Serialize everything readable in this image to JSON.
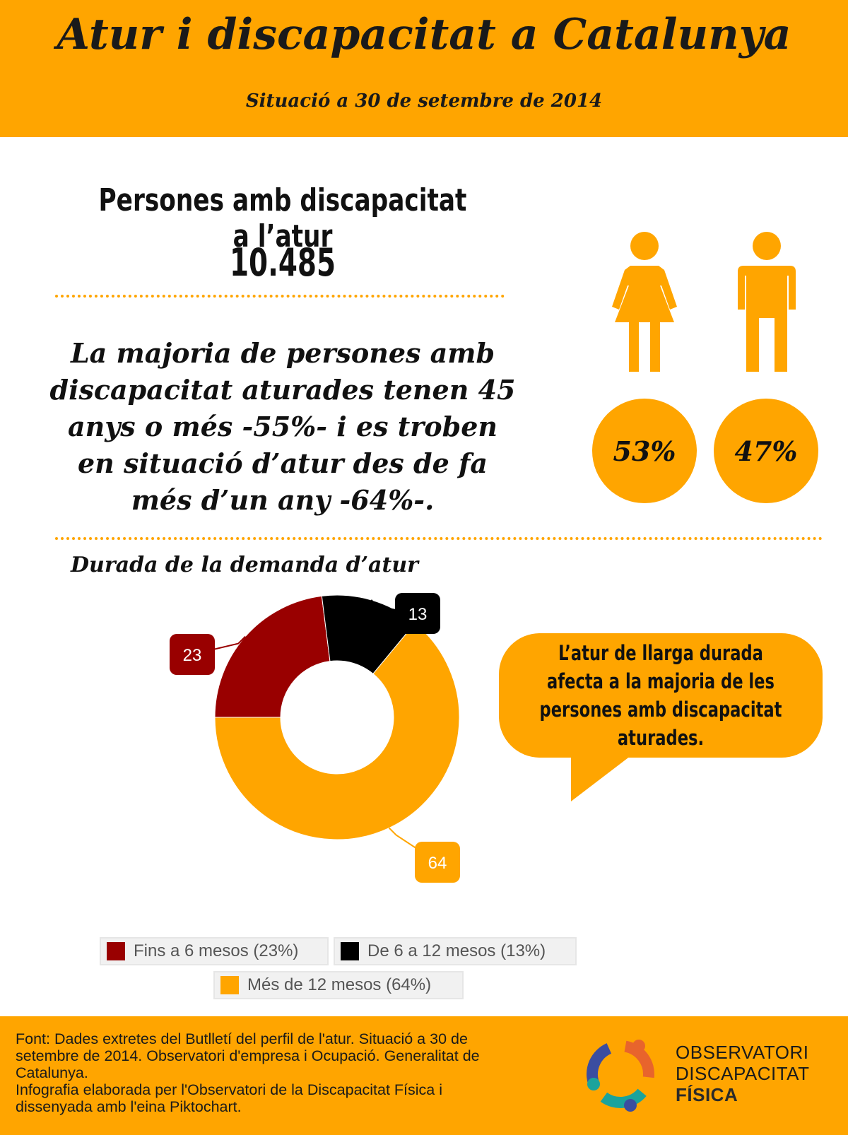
{
  "header": {
    "title": "Atur i discapacitat a Catalunya",
    "subtitle": "Situació a 30 de setembre de 2014"
  },
  "stats": {
    "label": "Persones amb discapacitat a l’atur",
    "value": "10.485"
  },
  "main_text": "La majoria de persones amb discapacitat aturades tenen 45 anys o més -55%- i es troben en situació d’atur des de fa més d’un any -64%-.",
  "gender": {
    "woman_pct": "53%",
    "man_pct": "47%",
    "icons": [
      "woman-icon",
      "man-icon"
    ]
  },
  "section_title": "Durada de la demanda d’atur",
  "bubble_text": "L’atur de llarga durada afecta a la majoria de les persones amb discapacitat aturades.",
  "chart_data": {
    "type": "pie",
    "variant": "donut",
    "categories": [
      "Fins a 6 mesos (23%)",
      "De 6 a 12 mesos (13%)",
      "Més de 12 mesos (64%)"
    ],
    "values": [
      23,
      13,
      64
    ],
    "data_labels": [
      "23",
      "13",
      "64"
    ],
    "colors": [
      "#990000",
      "#000000",
      "#FFA500"
    ],
    "legend": "bottom"
  },
  "footer": {
    "source_lines": [
      "Font: Dades extretes del Butlletí del perfil de l'atur. Situació a 30 de",
      "setembre de 2014. Observatori d'empresa i Ocupació. Generalitat de",
      "Catalunya.",
      "Infografia elaborada per l'Observatori de la Discapacitat Física i",
      "dissenyada amb l'eina Piktochart."
    ],
    "logo_line1": "OBSERVATORI",
    "logo_line2": "DISCAPACITAT",
    "logo_line3": "FÍSICA"
  },
  "colors": {
    "accent": "#FFA500",
    "dark_red": "#990000",
    "black": "#000000"
  }
}
